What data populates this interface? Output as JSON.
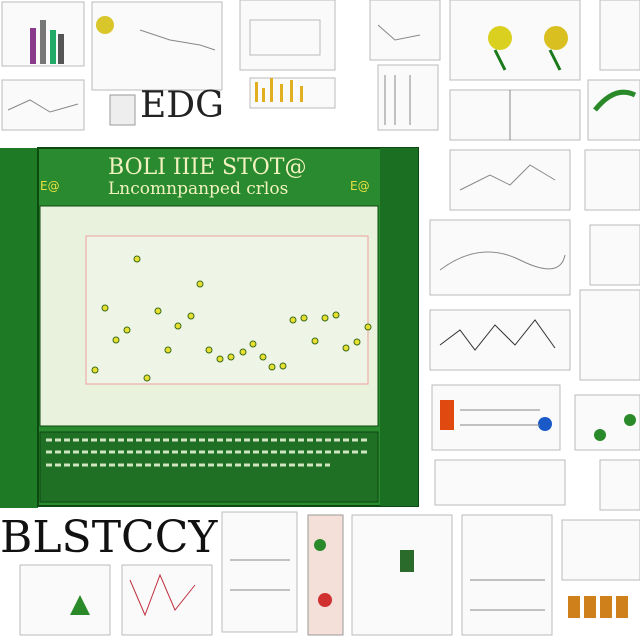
{
  "header": {
    "title": "EDG"
  },
  "panel": {
    "title": "BOLI IIIE STOT@",
    "subtitle": "Lncomnpanped crlos",
    "side_left": "E@",
    "side_right": "E@"
  },
  "footer": {
    "title": "BLSTCCY"
  }
}
